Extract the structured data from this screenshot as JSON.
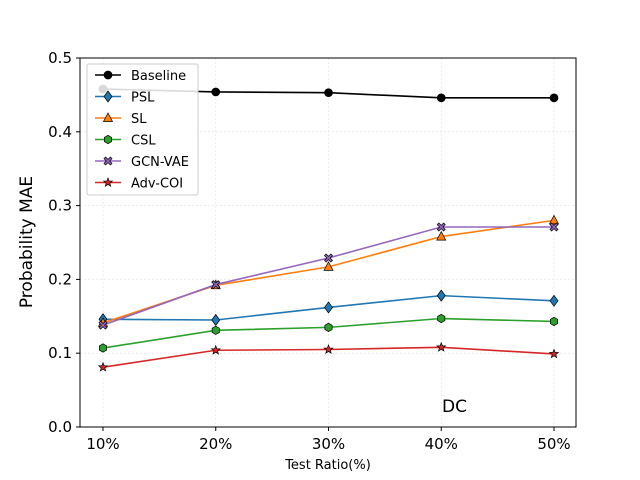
{
  "chart_data": {
    "type": "line",
    "categories": [
      "10%",
      "20%",
      "30%",
      "40%",
      "50%"
    ],
    "xlabel": "Test Ratio(%)",
    "ylabel": "Probability MAE",
    "ylim": [
      0.0,
      0.5
    ],
    "yticks": [
      "0.0",
      "0.1",
      "0.2",
      "0.3",
      "0.4",
      "0.5"
    ],
    "grid": true,
    "legend_position": "top-left",
    "annotation": "DC",
    "series": [
      {
        "name": "Baseline",
        "color": "#000000",
        "marker": "circle",
        "values": [
          0.458,
          0.454,
          0.453,
          0.446,
          0.446
        ]
      },
      {
        "name": "PSL",
        "color": "#1f77b4",
        "marker": "diamond",
        "values": [
          0.146,
          0.145,
          0.162,
          0.178,
          0.171
        ]
      },
      {
        "name": "SL",
        "color": "#ff7f0e",
        "marker": "triangle",
        "values": [
          0.141,
          0.192,
          0.217,
          0.258,
          0.28
        ]
      },
      {
        "name": "CSL",
        "color": "#2ca02c",
        "marker": "hexagon",
        "values": [
          0.107,
          0.131,
          0.135,
          0.147,
          0.143
        ]
      },
      {
        "name": "GCN-VAE",
        "color": "#9467bd",
        "marker": "x",
        "values": [
          0.138,
          0.193,
          0.229,
          0.271,
          0.271
        ]
      },
      {
        "name": "Adv-COI",
        "color": "#d62728",
        "marker": "star",
        "values": [
          0.081,
          0.104,
          0.105,
          0.108,
          0.099
        ]
      }
    ]
  }
}
